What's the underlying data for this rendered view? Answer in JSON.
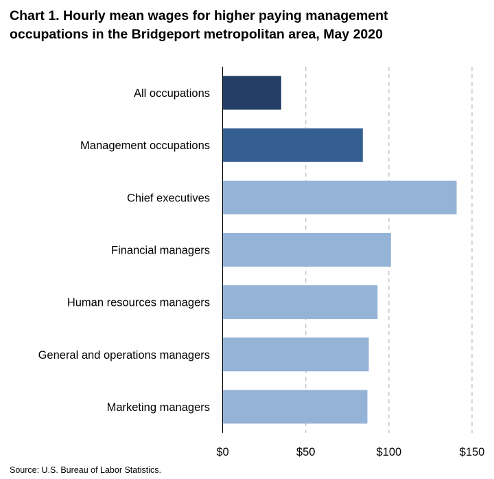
{
  "chart_data": {
    "type": "bar",
    "orientation": "horizontal",
    "title_lines": [
      "Chart 1. Hourly mean wages for higher paying management",
      "occupations in the Bridgeport metropolitan area, May 2020"
    ],
    "categories": [
      "All occupations",
      "Management occupations",
      "Chief executives",
      "Financial managers",
      "Human resources managers",
      "General and operations managers",
      "Marketing managers"
    ],
    "values": [
      35.21,
      84.31,
      140.73,
      101.22,
      93.17,
      87.91,
      87.05
    ],
    "colors": [
      "#243f66",
      "#365f91",
      "#95b3d7",
      "#95b3d7",
      "#95b3d7",
      "#95b3d7",
      "#95b3d7"
    ],
    "xlim": [
      0,
      150
    ],
    "xticks": [
      0,
      50,
      100,
      150
    ],
    "xtick_labels": [
      "$0",
      "$50",
      "$100",
      "$150"
    ],
    "grid": "vertical-dashed",
    "xlabel": "",
    "ylabel": ""
  },
  "source": "Source: U.S. Bureau of Labor Statistics."
}
